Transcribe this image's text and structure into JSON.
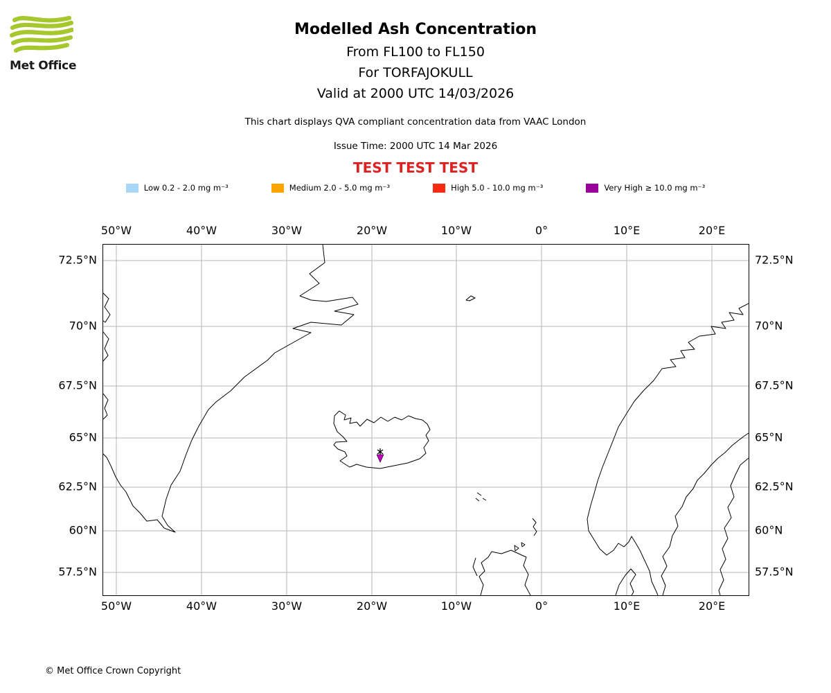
{
  "logo": {
    "text": "Met Office",
    "accent_color": "#A6C82E"
  },
  "header": {
    "title": "Modelled Ash Concentration",
    "line2": "From FL100 to FL150",
    "line3": "For TORFAJOKULL",
    "line4": "Valid at 2000 UTC 14/03/2026",
    "description": "This chart displays QVA compliant concentration data from VAAC London",
    "issue_time": "Issue Time: 2000 UTC 14 Mar 2026",
    "test_banner": {
      "text": "TEST TEST TEST",
      "color": "#DD2222"
    }
  },
  "legend": {
    "items": [
      {
        "label": "Low 0.2 - 2.0 mg m⁻³",
        "color": "#A9D7F5"
      },
      {
        "label": "Medium 2.0 - 5.0 mg m⁻³",
        "color": "#FFA500"
      },
      {
        "label": "High 5.0 - 10.0 mg m⁻³",
        "color": "#F82A12"
      },
      {
        "label": "Very High ≥ 10.0 mg m⁻³",
        "color": "#990099"
      }
    ]
  },
  "map": {
    "lon_ticks": [
      "50°W",
      "40°W",
      "30°W",
      "20°W",
      "10°W",
      "0°",
      "10°E",
      "20°E"
    ],
    "lat_ticks": [
      "72.5°N",
      "70°N",
      "67.5°N",
      "65°N",
      "62.5°N",
      "60°N",
      "57.5°N"
    ],
    "marker": {
      "name": "TORFAJOKULL",
      "color": "#C800C8"
    }
  },
  "footer": {
    "copyright": "© Met Office Crown Copyright"
  }
}
